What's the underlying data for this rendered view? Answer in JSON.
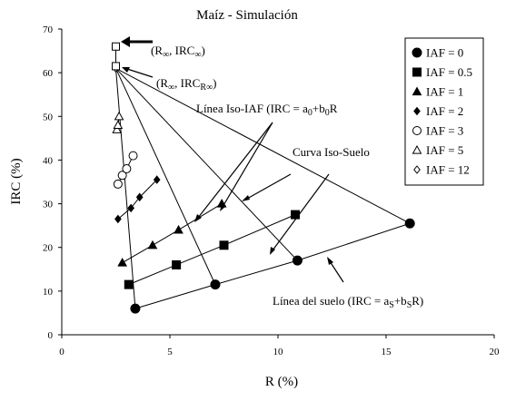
{
  "chart_data": {
    "type": "scatter",
    "title": "Maíz - Simulación",
    "xlabel": "R (%)",
    "ylabel": "IRC (%)",
    "xlim": [
      0,
      20
    ],
    "ylim": [
      0,
      70
    ],
    "x_ticks": [
      0,
      5,
      10,
      15,
      20
    ],
    "y_ticks": [
      0,
      10,
      20,
      30,
      40,
      50,
      60,
      70
    ],
    "grid": false,
    "legend_position": "top-right",
    "series": [
      {
        "name": "IAF = 0",
        "marker": "circle-filled",
        "x": [
          3.4,
          7.1,
          10.9,
          16.1
        ],
        "y": [
          6,
          11.5,
          17,
          25.5
        ]
      },
      {
        "name": "IAF = 0.5",
        "marker": "square-filled",
        "x": [
          3.1,
          5.3,
          7.5,
          10.8
        ],
        "y": [
          11.5,
          16,
          20.5,
          27.5
        ]
      },
      {
        "name": "IAF = 1",
        "marker": "triangle-filled",
        "x": [
          2.8,
          4.2,
          5.4,
          7.4
        ],
        "y": [
          16.5,
          20.5,
          24,
          30
        ]
      },
      {
        "name": "IAF = 2",
        "marker": "diamond-filled",
        "x": [
          2.6,
          3.2,
          3.6,
          4.4
        ],
        "y": [
          26.5,
          29,
          31.5,
          35.5
        ]
      },
      {
        "name": "IAF = 3",
        "marker": "circle-open",
        "x": [
          2.6,
          2.8,
          3.0,
          3.3
        ],
        "y": [
          34.5,
          36.5,
          38,
          41
        ]
      },
      {
        "name": "IAF = 5",
        "marker": "triangle-open",
        "x": [
          2.55,
          2.6,
          2.65
        ],
        "y": [
          47,
          48,
          50
        ]
      },
      {
        "name": "IAF = 12",
        "marker": "diamond-open",
        "x": [
          2.5
        ],
        "y": [
          61
        ]
      }
    ],
    "extra_points": [
      {
        "x": 2.5,
        "y": 66,
        "marker": "square-open"
      },
      {
        "x": 2.5,
        "y": 61.5,
        "marker": "square-open"
      }
    ],
    "soil_lines": [
      {
        "x": [
          2.5,
          3.4
        ],
        "y": [
          61,
          6
        ]
      },
      {
        "x": [
          2.5,
          7.1
        ],
        "y": [
          61,
          11.5
        ]
      },
      {
        "x": [
          2.5,
          10.9
        ],
        "y": [
          61,
          17
        ]
      },
      {
        "x": [
          2.5,
          16.1
        ],
        "y": [
          61,
          25.5
        ]
      }
    ],
    "vertical_line": {
      "x": [
        2.5,
        2.5
      ],
      "y": [
        61,
        66
      ]
    },
    "annotations": {
      "r_inf": {
        "prefix": "(R",
        "sub": "∞",
        "mid": ", IRC",
        "sub2": "∞",
        "suffix": ")"
      },
      "r_inf_rinf": {
        "prefix": "(R",
        "sub": "∞",
        "mid": ", IRC",
        "sub2": "R∞",
        "suffix": ")"
      },
      "iso_iaf": {
        "prefix": "Línea Iso-IAF (IRC = a",
        "sub": "0",
        "mid": "+b",
        "sub2": "0",
        "suffix": "R"
      },
      "iso_suelo": {
        "text": "Curva Iso-Suelo"
      },
      "soil_line": {
        "prefix": "Línea del suelo (IRC = a",
        "sub": "S",
        "mid": "+b",
        "sub2": "S",
        "suffix": "R)"
      }
    },
    "colors": {
      "line": "#000000",
      "background": "#ffffff"
    }
  }
}
